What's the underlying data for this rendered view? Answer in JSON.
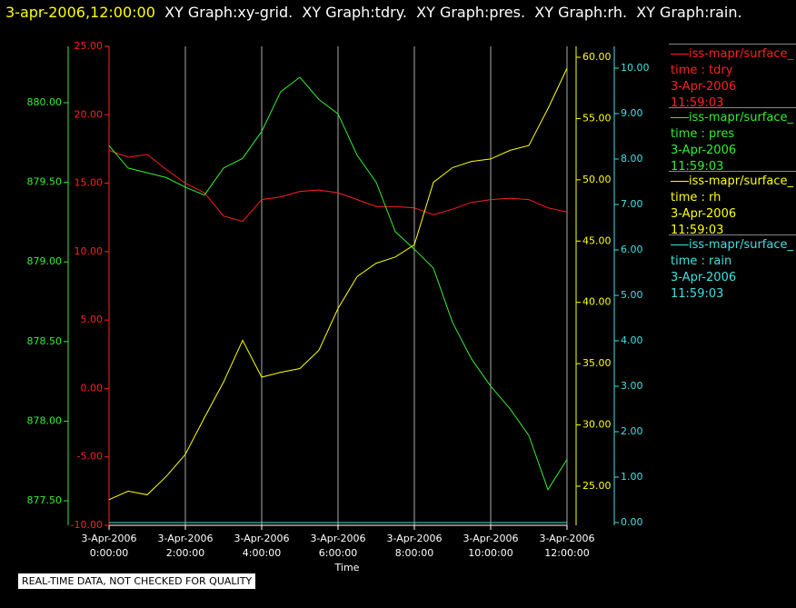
{
  "header": {
    "timestamp": "3-apr-2006,12:00:00",
    "graphs": "XY Graph:xy-grid.  XY Graph:tdry.  XY Graph:pres.  XY Graph:rh.  XY Graph:rain."
  },
  "footer": "REAL-TIME DATA, NOT CHECKED FOR QUALITY",
  "chart_data": {
    "type": "line",
    "xlabel": "Time",
    "x": [
      0,
      0.5,
      1,
      1.5,
      2,
      2.5,
      3,
      3.5,
      4,
      4.5,
      5,
      5.5,
      6,
      6.5,
      7,
      7.5,
      8,
      8.5,
      9,
      9.5,
      10,
      10.5,
      11,
      11.5,
      12
    ],
    "xlim": [
      0,
      12
    ],
    "xticks": [
      {
        "value": 0,
        "label": "3-Apr-2006 0:00:00"
      },
      {
        "value": 2,
        "label": "3-Apr-2006 2:00:00"
      },
      {
        "value": 4,
        "label": "3-Apr-2006 4:00:00"
      },
      {
        "value": 6,
        "label": "3-Apr-2006 6:00:00"
      },
      {
        "value": 8,
        "label": "3-Apr-2006 8:00:00"
      },
      {
        "value": 10,
        "label": "3-Apr-2006 10:00:00"
      },
      {
        "value": 12,
        "label": "3-Apr-2006 12:00:00"
      }
    ],
    "grid": true,
    "ylim": [
      -10,
      25
    ],
    "yticks": [
      {
        "value": -10,
        "label": "-10.00"
      },
      {
        "value": -5,
        "label": "-5.00"
      },
      {
        "value": 0,
        "label": "0.00"
      },
      {
        "value": 5,
        "label": "5.00"
      },
      {
        "value": 10,
        "label": "10.00"
      },
      {
        "value": 15,
        "label": "15.00"
      },
      {
        "value": 20,
        "label": "20.00"
      },
      {
        "value": 25,
        "label": "25.00"
      }
    ],
    "y2lim": [
      877.346,
      880.354
    ],
    "y2ticks": [
      {
        "value": 877.5,
        "label": "877.50"
      },
      {
        "value": 878,
        "label": "878.00"
      },
      {
        "value": 878.5,
        "label": "878.50"
      },
      {
        "value": 879,
        "label": "879.00"
      },
      {
        "value": 879.5,
        "label": "879.50"
      },
      {
        "value": 880,
        "label": "880.00"
      }
    ],
    "y3lim": [
      21.81,
      60.89
    ],
    "y3ticks": [
      {
        "value": 25,
        "label": "25.00"
      },
      {
        "value": 30,
        "label": "30.00"
      },
      {
        "value": 35,
        "label": "35.00"
      },
      {
        "value": 40,
        "label": "40.00"
      },
      {
        "value": 45,
        "label": "45.00"
      },
      {
        "value": 50,
        "label": "50.00"
      },
      {
        "value": 55,
        "label": "55.00"
      },
      {
        "value": 60,
        "label": "60.00"
      }
    ],
    "y4lim": [
      -0.06,
      10.48
    ],
    "y4ticks": [
      {
        "value": 0,
        "label": "0.00"
      },
      {
        "value": 1,
        "label": "1.00"
      },
      {
        "value": 2,
        "label": "2.00"
      },
      {
        "value": 3,
        "label": "3.00"
      },
      {
        "value": 4,
        "label": "4.00"
      },
      {
        "value": 5,
        "label": "5.00"
      },
      {
        "value": 6,
        "label": "6.00"
      },
      {
        "value": 7,
        "label": "7.00"
      },
      {
        "value": 8,
        "label": "8.00"
      },
      {
        "value": 9,
        "label": "9.00"
      },
      {
        "value": 10,
        "label": "10.00"
      }
    ],
    "series": [
      {
        "name": "iss-mapr/surface_",
        "detail": "time : tdry",
        "date": "3-Apr-2006",
        "time": "11:59:03",
        "color": "#ff2020",
        "axis": "y",
        "values": [
          17.4,
          16.9,
          17.1,
          16.0,
          15.0,
          14.3,
          12.6,
          12.2,
          13.8,
          14.0,
          14.4,
          14.5,
          14.3,
          13.8,
          13.3,
          13.3,
          13.2,
          12.7,
          13.1,
          13.6,
          13.8,
          13.9,
          13.8,
          13.2,
          12.9
        ]
      },
      {
        "name": "iss-mapr/surface_",
        "detail": "time : pres",
        "date": "3-Apr-2006",
        "time": "11:59:03",
        "color": "#33ee33",
        "axis": "y2",
        "values": [
          879.73,
          879.59,
          879.56,
          879.53,
          879.47,
          879.42,
          879.59,
          879.65,
          879.82,
          880.07,
          880.16,
          880.02,
          879.93,
          879.67,
          879.5,
          879.19,
          879.08,
          878.96,
          878.62,
          878.39,
          878.22,
          878.08,
          877.91,
          877.57,
          877.76
        ]
      },
      {
        "name": "iss-mapr/surface_",
        "detail": "time : rh",
        "date": "3-Apr-2006",
        "time": "11:59:03",
        "color": "#ffff00",
        "axis": "y3",
        "values": [
          23.9,
          24.6,
          24.3,
          25.8,
          27.6,
          30.6,
          33.5,
          36.9,
          33.9,
          34.3,
          34.6,
          36.1,
          39.5,
          42.1,
          43.2,
          43.7,
          44.7,
          49.8,
          51.0,
          51.5,
          51.7,
          52.4,
          52.8,
          55.8,
          59.1
        ]
      },
      {
        "name": "iss-mapr/surface_",
        "detail": "time : rain",
        "date": "3-Apr-2006",
        "time": "11:59:03",
        "color": "#40e0e0",
        "axis": "y4",
        "values": [
          0,
          0,
          0,
          0,
          0,
          0,
          0,
          0,
          0,
          0,
          0,
          0,
          0,
          0,
          0,
          0,
          0,
          0,
          0,
          0,
          0,
          0,
          0,
          0,
          0
        ]
      }
    ]
  }
}
